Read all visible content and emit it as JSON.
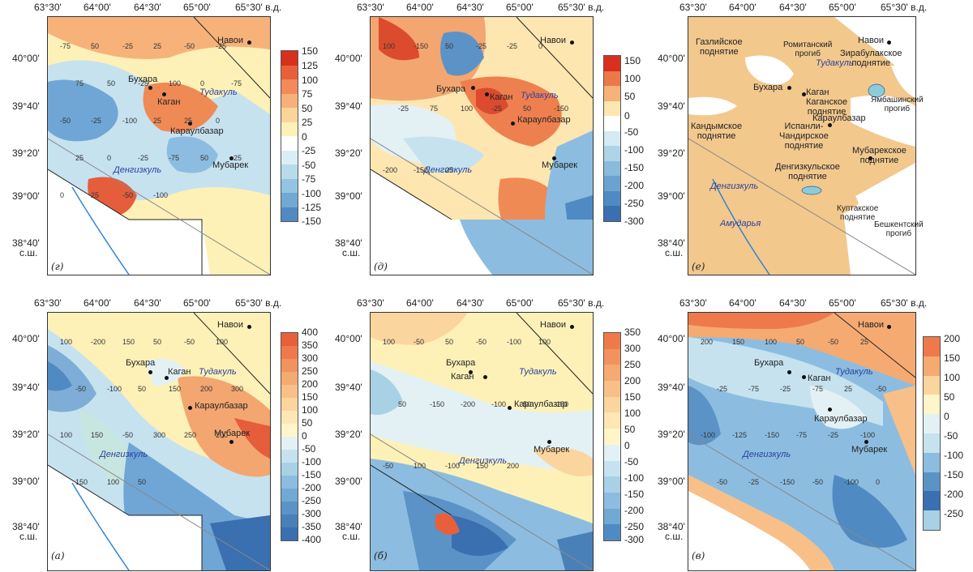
{
  "longitude_labels": [
    "63°30'",
    "64°00'",
    "64°30'",
    "65°00'",
    "65°30' в.д."
  ],
  "latitude_labels": [
    "40°00'",
    "39°40'",
    "39°20'",
    "39°00'",
    "38°40'"
  ],
  "lat_suffix": "с.ш.",
  "panels": {
    "g": {
      "letter": "(г)",
      "colorbar": [
        "150",
        "125",
        "100",
        "75",
        "50",
        "25",
        "0",
        "-25",
        "-50",
        "-75",
        "-100",
        "-125",
        "-150"
      ]
    },
    "d": {
      "letter": "(д)",
      "colorbar": [
        "150",
        "100",
        "50",
        "0",
        "-50",
        "-100",
        "-150",
        "-200",
        "-250",
        "-300"
      ]
    },
    "e": {
      "letter": "(е)"
    },
    "a": {
      "letter": "(а)",
      "colorbar": [
        "400",
        "350",
        "300",
        "250",
        "200",
        "150",
        "100",
        "50",
        "0",
        "-50",
        "-100",
        "-150",
        "-200",
        "-250",
        "-300",
        "-350",
        "-400"
      ]
    },
    "b": {
      "letter": "(б)",
      "colorbar": [
        "350",
        "300",
        "250",
        "200",
        "150",
        "100",
        "50",
        "0",
        "-50",
        "-100",
        "-150",
        "-200",
        "-250",
        "-300"
      ]
    },
    "v": {
      "letter": "(в)",
      "colorbar": [
        "200",
        "150",
        "100",
        "50",
        "0",
        "-50",
        "-100",
        "-150",
        "-200",
        "-250"
      ]
    }
  },
  "cities": {
    "navoi": "Навои",
    "bukhara": "Бухара",
    "kagan": "Каган",
    "karaulbazar": "Караулбазар",
    "mubarek": "Мубарек"
  },
  "lakes": {
    "tudakul": "Тудакуль",
    "dengizkul": "Денгизкуль"
  },
  "river": "Амударья",
  "structures": {
    "gazli": "Газлийское\nподнятие",
    "rometan": "Ромитанский\nпрогиб",
    "zirabulak": "Зирабулакское\nподнятие",
    "kagan_up": "Каганское\nподнятие",
    "yambashin": "Ямбашинский\nпрогиб",
    "kandym": "Кандымское\nподнятие",
    "ispanli": "Испанли-\nЧандирское\nподнятие",
    "mubarek_up": "Мубарекское\nподнятие",
    "dengizkul_up": "Денгизкульское\nподнятие",
    "kuptak": "Куптакское\nподнятие",
    "beshkent": "Бешкентский\nпрогиб"
  },
  "contour_labels": {
    "g": [
      "-75",
      "50",
      "-25",
      "25",
      "-50",
      "-25",
      "75",
      "50",
      "-25",
      "100",
      "0",
      "-75",
      "-50",
      "-25",
      "-100",
      "25",
      "25",
      "0",
      "25",
      "0",
      "-25",
      "-75",
      "50",
      "-25",
      "0",
      "25",
      "-50",
      "-100"
    ],
    "d": [
      "100",
      "-150",
      "50",
      "-25",
      "-25",
      "0",
      "-25",
      "75",
      "100",
      "-25",
      "50",
      "-150",
      "-200",
      "-150",
      "25"
    ],
    "a": [
      "100",
      "-200",
      "150",
      "50",
      "-50",
      "100",
      "-50",
      "-100",
      "50",
      "150",
      "200",
      "300",
      "100",
      "150",
      "-50",
      "300",
      "250",
      "200",
      "150",
      "100",
      "50"
    ],
    "b": [
      "100",
      "-50",
      "50",
      "-50",
      "-100",
      "100",
      "50",
      "-150",
      "-200",
      "-100",
      "50",
      "-150",
      "-50",
      "100",
      "-100",
      "150",
      "200"
    ],
    "v": [
      "200",
      "150",
      "100",
      "50",
      "-50",
      "25",
      "-25",
      "-75",
      "-25",
      "-75",
      "25",
      "-50",
      "-100",
      "-125",
      "-150",
      "-75",
      "-25",
      "-100",
      "-50",
      "-25",
      "-150",
      "-50",
      "-100",
      "0"
    ]
  },
  "colors": {
    "positive_max": "#d7301f",
    "zero": "#ffffff",
    "negative_max": "#3a6fb0",
    "uplift": "#f2c88d",
    "lake": "#8ccbd8",
    "river": "#2a7fd4"
  }
}
